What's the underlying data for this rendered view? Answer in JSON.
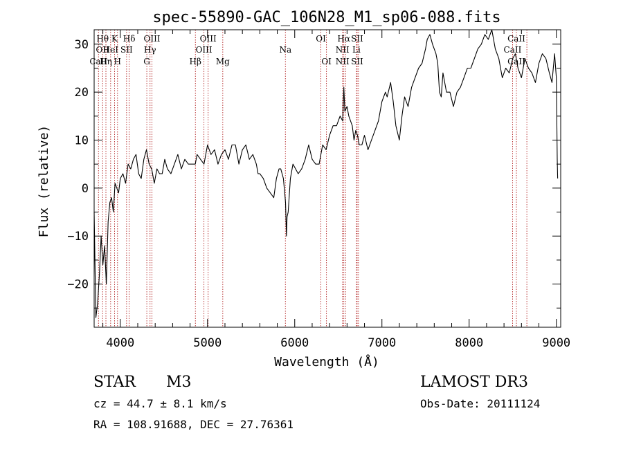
{
  "chart_data": {
    "type": "line",
    "title": "spec-55890-GAC_106N28_M1_sp06-088.fits",
    "xlabel": "Wavelength (Å)",
    "ylabel": "Flux (relative)",
    "xlim": [
      3700,
      9050
    ],
    "ylim": [
      -29,
      33
    ],
    "xticks": [
      4000,
      5000,
      6000,
      7000,
      8000,
      9000
    ],
    "yticks": [
      -20,
      -10,
      0,
      10,
      20,
      30
    ],
    "series": [
      {
        "name": "flux",
        "x": [
          3700,
          3720,
          3740,
          3760,
          3780,
          3800,
          3820,
          3840,
          3860,
          3880,
          3900,
          3920,
          3940,
          3960,
          3980,
          4000,
          4030,
          4060,
          4090,
          4120,
          4150,
          4180,
          4210,
          4240,
          4270,
          4300,
          4330,
          4360,
          4390,
          4420,
          4450,
          4480,
          4510,
          4540,
          4580,
          4620,
          4660,
          4700,
          4740,
          4780,
          4820,
          4860,
          4880,
          4920,
          4960,
          5000,
          5040,
          5080,
          5120,
          5160,
          5200,
          5240,
          5280,
          5320,
          5360,
          5400,
          5440,
          5480,
          5520,
          5560,
          5580,
          5600,
          5640,
          5680,
          5720,
          5760,
          5790,
          5820,
          5840,
          5870,
          5895,
          5905,
          5912,
          5925,
          5950,
          5980,
          6010,
          6040,
          6080,
          6120,
          6160,
          6200,
          6240,
          6280,
          6320,
          6360,
          6400,
          6440,
          6480,
          6520,
          6550,
          6563,
          6575,
          6600,
          6620,
          6640,
          6660,
          6680,
          6700,
          6720,
          6740,
          6770,
          6800,
          6840,
          6880,
          6920,
          6960,
          7000,
          7040,
          7060,
          7100,
          7130,
          7160,
          7200,
          7230,
          7260,
          7300,
          7340,
          7380,
          7420,
          7460,
          7500,
          7520,
          7550,
          7580,
          7620,
          7640,
          7660,
          7680,
          7700,
          7740,
          7780,
          7820,
          7860,
          7900,
          7940,
          7980,
          8020,
          8060,
          8100,
          8140,
          8180,
          8220,
          8260,
          8300,
          8340,
          8380,
          8420,
          8460,
          8500,
          8530,
          8560,
          8600,
          8640,
          8680,
          8720,
          8760,
          8800,
          8840,
          8880,
          8920,
          8950,
          8980,
          9000,
          9010,
          9015
        ],
        "y": [
          -5,
          -27,
          -24,
          -18,
          -10,
          -16,
          -12,
          -20,
          -7,
          -3,
          -2,
          -5,
          1,
          0,
          -1,
          2,
          3,
          1,
          5,
          4,
          6,
          7,
          3,
          2,
          6,
          8,
          5,
          4,
          1,
          4,
          3,
          3,
          6,
          4,
          3,
          5,
          7,
          4,
          6,
          5,
          5,
          5,
          7,
          6,
          5,
          9,
          7,
          8,
          5,
          7,
          8,
          6,
          9,
          9,
          5,
          8,
          9,
          6,
          7,
          5,
          3,
          3,
          2,
          0,
          -1,
          -2,
          2,
          4,
          4,
          2,
          -3,
          -10,
          -6,
          -5,
          2,
          5,
          4,
          3,
          4,
          6,
          9,
          6,
          5,
          5,
          9,
          8,
          11,
          13,
          13,
          15,
          14,
          21,
          16,
          17,
          15,
          14,
          13,
          10,
          12,
          11,
          9,
          9,
          11,
          8,
          10,
          12,
          14,
          18,
          20,
          19,
          22,
          18,
          13,
          10,
          15,
          19,
          17,
          21,
          23,
          25,
          26,
          29,
          31,
          32,
          30,
          28,
          26,
          20,
          19,
          24,
          20,
          20,
          17,
          20,
          21,
          23,
          25,
          25,
          27,
          29,
          30,
          32,
          31,
          33,
          29,
          27,
          23,
          25,
          24,
          27,
          28,
          25,
          23,
          27,
          25,
          24,
          22,
          26,
          28,
          27,
          24,
          22,
          28,
          23,
          6,
          2
        ]
      }
    ],
    "line_markers": [
      {
        "lambda": 3750,
        "rows": [
          "",
          "",
          "CaII"
        ]
      },
      {
        "lambda": 3797,
        "rows": [
          "Hθ",
          "OII",
          ""
        ]
      },
      {
        "lambda": 3835,
        "rows": [
          "",
          "",
          "Hη"
        ]
      },
      {
        "lambda": 3889,
        "rows": [
          "",
          "HeI",
          ""
        ]
      },
      {
        "lambda": 3934,
        "rows": [
          "K",
          "",
          ""
        ]
      },
      {
        "lambda": 3968,
        "rows": [
          "",
          "",
          "H"
        ]
      },
      {
        "lambda": 4072,
        "rows": [
          "",
          "SII",
          ""
        ]
      },
      {
        "lambda": 4102,
        "rows": [
          "Hδ",
          "",
          ""
        ]
      },
      {
        "lambda": 4304,
        "rows": [
          "",
          "",
          "G"
        ]
      },
      {
        "lambda": 4341,
        "rows": [
          "",
          "Hγ",
          ""
        ]
      },
      {
        "lambda": 4363,
        "rows": [
          "OIII",
          "",
          ""
        ]
      },
      {
        "lambda": 4861,
        "rows": [
          "",
          "",
          "Hβ"
        ]
      },
      {
        "lambda": 4959,
        "rows": [
          "",
          "OIII",
          ""
        ]
      },
      {
        "lambda": 5007,
        "rows": [
          "OIII",
          "",
          ""
        ]
      },
      {
        "lambda": 5175,
        "rows": [
          "",
          "",
          "Mg"
        ]
      },
      {
        "lambda": 5893,
        "rows": [
          "",
          "Na",
          ""
        ]
      },
      {
        "lambda": 6300,
        "rows": [
          "OI",
          "",
          ""
        ]
      },
      {
        "lambda": 6364,
        "rows": [
          "",
          "",
          "OI"
        ]
      },
      {
        "lambda": 6548,
        "rows": [
          "",
          "NII",
          "NII"
        ]
      },
      {
        "lambda": 6563,
        "rows": [
          "Hα",
          "",
          ""
        ]
      },
      {
        "lambda": 6583,
        "rows": [
          "",
          "",
          ""
        ]
      },
      {
        "lambda": 6708,
        "rows": [
          "",
          "Li",
          ""
        ]
      },
      {
        "lambda": 6716,
        "rows": [
          "SII",
          "",
          "SII"
        ]
      },
      {
        "lambda": 6731,
        "rows": [
          "",
          "",
          ""
        ]
      },
      {
        "lambda": 8498,
        "rows": [
          "",
          "CaII",
          ""
        ]
      },
      {
        "lambda": 8542,
        "rows": [
          "CaII",
          "",
          "CaII"
        ]
      },
      {
        "lambda": 8662,
        "rows": [
          "",
          "",
          ""
        ]
      }
    ]
  },
  "info": {
    "class_label": "STAR",
    "subclass": "M3",
    "survey": "LAMOST DR3",
    "redshift_text": "cz = 44.7 ± 8.1 km/s",
    "obs_date_text": "Obs-Date: 20111124",
    "coords_text": "RA = 108.91688, DEC =  27.76361"
  },
  "colors": {
    "spectrum": "#000000",
    "marker_line": "#b22222",
    "axes": "#000000"
  }
}
